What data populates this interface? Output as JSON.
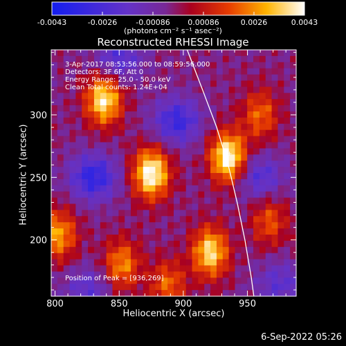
{
  "chart_data": {
    "type": "heatmap",
    "title": "Reconstructed RHESSI Image",
    "xlabel": "Heliocentric X (arcsec)",
    "ylabel": "Heliocentric Y (arcsec)",
    "xlim": [
      797,
      988
    ],
    "ylim": [
      155,
      352
    ],
    "x_ticks": [
      800,
      850,
      900,
      950
    ],
    "y_ticks": [
      200,
      250,
      300
    ],
    "colorbar": {
      "min": -0.0043,
      "max": 0.0043,
      "ticks": [
        "-0.0043",
        "-0.0026",
        "-0.00086",
        "0.00086",
        "0.0026",
        "0.0043"
      ],
      "units_label": "(photons cm⁻² s⁻¹ asec⁻²)"
    },
    "info_lines": [
      "3-Apr-2017 08:53:56.000 to 08:59:56.000",
      "Detectors: 3F 6F, Att 0",
      "Energy Range: 25.0 - 50.0 keV",
      "Clean     Total counts: 1.24E+04"
    ],
    "peak_text": "Position of Peak = [936,269]",
    "sources": [
      {
        "x": 875,
        "y": 253,
        "amp": 1.0
      },
      {
        "x": 838,
        "y": 312,
        "amp": 0.9
      },
      {
        "x": 935,
        "y": 266,
        "amp": 1.0
      },
      {
        "x": 921,
        "y": 190,
        "amp": 0.85
      },
      {
        "x": 803,
        "y": 204,
        "amp": 0.65
      },
      {
        "x": 852,
        "y": 180,
        "amp": 0.6
      },
      {
        "x": 967,
        "y": 215,
        "amp": 0.45
      },
      {
        "x": 888,
        "y": 164,
        "amp": 0.5
      },
      {
        "x": 960,
        "y": 300,
        "amp": 0.5
      }
    ],
    "negative_regions": [
      {
        "x": 830,
        "y": 250,
        "amp": 0.9
      },
      {
        "x": 895,
        "y": 295,
        "amp": 0.8
      },
      {
        "x": 850,
        "y": 345,
        "amp": 0.6
      },
      {
        "x": 960,
        "y": 250,
        "amp": 0.6
      },
      {
        "x": 825,
        "y": 160,
        "amp": 0.5
      },
      {
        "x": 975,
        "y": 165,
        "amp": 0.5
      }
    ],
    "limb_curve": [
      [
        903,
        352
      ],
      [
        915,
        320
      ],
      [
        926,
        290
      ],
      [
        935,
        260
      ],
      [
        942,
        230
      ],
      [
        948,
        200
      ],
      [
        953,
        170
      ],
      [
        955,
        155
      ]
    ]
  },
  "timestamp": "6-Sep-2022 05:26",
  "colors": {
    "background": "#000000",
    "text": "#ffffff",
    "limb": "#ffffff"
  }
}
